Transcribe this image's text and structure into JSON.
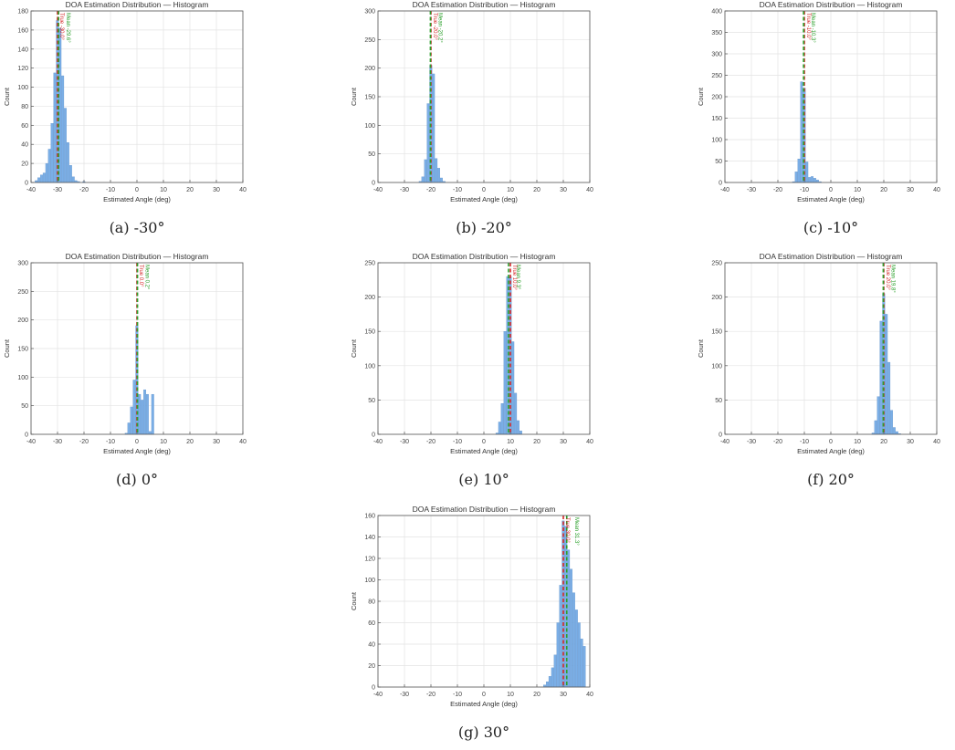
{
  "chart_data": [
    {
      "type": "bar",
      "title": "DOA Estimation Distribution — Histogram",
      "xlabel": "Estimated Angle (deg)",
      "ylabel": "Count",
      "xlim": [
        -40,
        40
      ],
      "ylim": [
        0,
        180
      ],
      "x_ticks": [
        -40,
        -30,
        -20,
        -10,
        0,
        10,
        20,
        30,
        40
      ],
      "y_ticks": [
        0,
        20,
        40,
        60,
        80,
        100,
        120,
        140,
        160,
        180
      ],
      "bin_width": 1,
      "bin_centers": [
        -38,
        -37,
        -36,
        -35,
        -34,
        -33,
        -32,
        -31,
        -30,
        -29,
        -28,
        -27,
        -26,
        -25,
        -24,
        -23,
        -22,
        -21,
        -20
      ],
      "values": [
        2,
        5,
        8,
        10,
        20,
        35,
        62,
        115,
        170,
        162,
        112,
        78,
        42,
        18,
        6,
        2,
        1,
        0,
        1
      ],
      "true_line": {
        "x": -30,
        "label": "True -30.0°",
        "color": "#d62728"
      },
      "mean_line": {
        "x": -29.6,
        "label": "Mean -29.6°",
        "color": "#2ca02c"
      },
      "bar_color": "#7aaee6",
      "grid": true,
      "caption": "(a) -30°"
    },
    {
      "type": "bar",
      "title": "DOA Estimation Distribution — Histogram",
      "xlabel": "Estimated Angle (deg)",
      "ylabel": "Count",
      "xlim": [
        -40,
        40
      ],
      "ylim": [
        0,
        300
      ],
      "x_ticks": [
        -40,
        -30,
        -20,
        -10,
        0,
        10,
        20,
        30,
        40
      ],
      "y_ticks": [
        0,
        50,
        100,
        150,
        200,
        250,
        300
      ],
      "bin_width": 1,
      "bin_centers": [
        -24,
        -23,
        -22,
        -21,
        -20,
        -19,
        -18,
        -17,
        -16,
        -15
      ],
      "values": [
        2,
        10,
        40,
        138,
        205,
        190,
        42,
        25,
        8,
        2
      ],
      "true_line": {
        "x": -20,
        "label": "True -20.0°",
        "color": "#d62728"
      },
      "mean_line": {
        "x": -20.2,
        "label": "Mean -20.2°",
        "color": "#2ca02c"
      },
      "bar_color": "#7aaee6",
      "grid": true,
      "caption": "(b) -20°"
    },
    {
      "type": "bar",
      "title": "DOA Estimation Distribution — Histogram",
      "xlabel": "Estimated Angle (deg)",
      "ylabel": "Count",
      "xlim": [
        -40,
        40
      ],
      "ylim": [
        0,
        400
      ],
      "x_ticks": [
        -40,
        -30,
        -20,
        -10,
        0,
        10,
        20,
        30,
        40
      ],
      "y_ticks": [
        0,
        50,
        100,
        150,
        200,
        250,
        300,
        350,
        400
      ],
      "bin_width": 1,
      "bin_centers": [
        -14,
        -13,
        -12,
        -11,
        -10,
        -9,
        -8,
        -7,
        -6,
        -5,
        -4
      ],
      "values": [
        2,
        25,
        55,
        235,
        220,
        48,
        12,
        14,
        10,
        6,
        2
      ],
      "true_line": {
        "x": -10,
        "label": "True -10.0°",
        "color": "#d62728"
      },
      "mean_line": {
        "x": -10.3,
        "label": "Mean -10.3°",
        "color": "#2ca02c"
      },
      "bar_color": "#7aaee6",
      "grid": true,
      "caption": "(c) -10°"
    },
    {
      "type": "bar",
      "title": "DOA Estimation Distribution — Histogram",
      "xlabel": "Estimated Angle (deg)",
      "ylabel": "Count",
      "xlim": [
        -40,
        40
      ],
      "ylim": [
        0,
        300
      ],
      "x_ticks": [
        -40,
        -30,
        -20,
        -10,
        0,
        10,
        20,
        30,
        40
      ],
      "y_ticks": [
        0,
        50,
        100,
        150,
        200,
        250,
        300
      ],
      "bin_width": 1,
      "bin_centers": [
        -4,
        -3,
        -2,
        -1,
        0,
        1,
        2,
        3,
        4,
        5,
        6
      ],
      "values": [
        2,
        20,
        48,
        95,
        190,
        70,
        60,
        78,
        70,
        5,
        70
      ],
      "true_line": {
        "x": 0,
        "label": "True 0.0°",
        "color": "#d62728"
      },
      "mean_line": {
        "x": 0.2,
        "label": "Mean 0.2°",
        "color": "#2ca02c"
      },
      "bar_color": "#7aaee6",
      "grid": true,
      "caption": "(d) 0°"
    },
    {
      "type": "bar",
      "title": "DOA Estimation Distribution — Histogram",
      "xlabel": "Estimated Angle (deg)",
      "ylabel": "Count",
      "xlim": [
        -40,
        40
      ],
      "ylim": [
        0,
        250
      ],
      "x_ticks": [
        -40,
        -30,
        -20,
        -10,
        0,
        10,
        20,
        30,
        40
      ],
      "y_ticks": [
        0,
        50,
        100,
        150,
        200,
        250
      ],
      "bin_width": 1,
      "bin_centers": [
        5,
        6,
        7,
        8,
        9,
        10,
        11,
        12,
        13,
        14
      ],
      "values": [
        2,
        18,
        45,
        150,
        230,
        230,
        135,
        60,
        20,
        5
      ],
      "true_line": {
        "x": 10,
        "label": "True 10.0°",
        "color": "#d62728"
      },
      "mean_line": {
        "x": 9.3,
        "label": "Mean 9.3°",
        "color": "#2ca02c"
      },
      "bar_color": "#7aaee6",
      "grid": true,
      "caption": "(e) 10°"
    },
    {
      "type": "bar",
      "title": "DOA Estimation Distribution — Histogram",
      "xlabel": "Estimated Angle (deg)",
      "ylabel": "Count",
      "xlim": [
        -40,
        40
      ],
      "ylim": [
        0,
        250
      ],
      "x_ticks": [
        -40,
        -30,
        -20,
        -10,
        0,
        10,
        20,
        30,
        40
      ],
      "y_ticks": [
        0,
        50,
        100,
        150,
        200,
        250
      ],
      "bin_width": 1,
      "bin_centers": [
        16,
        17,
        18,
        19,
        20,
        21,
        22,
        23,
        24,
        25,
        26
      ],
      "values": [
        2,
        20,
        55,
        165,
        205,
        175,
        105,
        35,
        10,
        4,
        1
      ],
      "true_line": {
        "x": 20,
        "label": "True 20.0°",
        "color": "#d62728"
      },
      "mean_line": {
        "x": 19.8,
        "label": "Mean 19.8°",
        "color": "#2ca02c"
      },
      "bar_color": "#7aaee6",
      "grid": true,
      "caption": "(f) 20°"
    },
    {
      "type": "bar",
      "title": "DOA Estimation Distribution — Histogram",
      "xlabel": "Estimated Angle (deg)",
      "ylabel": "Count",
      "xlim": [
        -40,
        40
      ],
      "ylim": [
        0,
        160
      ],
      "x_ticks": [
        -40,
        -30,
        -20,
        -10,
        0,
        10,
        20,
        30,
        40
      ],
      "y_ticks": [
        0,
        20,
        40,
        60,
        80,
        100,
        120,
        140,
        160
      ],
      "bin_width": 1,
      "bin_centers": [
        23,
        24,
        25,
        26,
        27,
        28,
        29,
        30,
        31,
        32,
        33,
        34,
        35,
        36,
        37,
        38
      ],
      "values": [
        2,
        5,
        10,
        18,
        30,
        60,
        95,
        155,
        150,
        128,
        110,
        88,
        72,
        60,
        45,
        38
      ],
      "true_line": {
        "x": 30,
        "label": "True 30.0°",
        "color": "#d62728"
      },
      "mean_line": {
        "x": 31.3,
        "label": "Mean 31.3°",
        "color": "#2ca02c"
      },
      "bar_color": "#7aaee6",
      "grid": true,
      "caption": "(g) 30°"
    }
  ]
}
